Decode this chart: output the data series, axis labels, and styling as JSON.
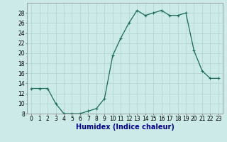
{
  "x": [
    0,
    1,
    2,
    3,
    4,
    5,
    6,
    7,
    8,
    9,
    10,
    11,
    12,
    13,
    14,
    15,
    16,
    17,
    18,
    19,
    20,
    21,
    22,
    23
  ],
  "y": [
    13,
    13,
    13,
    10,
    8,
    8,
    8,
    8.5,
    9,
    11,
    19.5,
    23,
    26,
    28.5,
    27.5,
    28,
    28.5,
    27.5,
    27.5,
    28,
    20.5,
    16.5,
    15,
    15
  ],
  "line_color": "#1a6b5a",
  "marker": "+",
  "marker_size": 3,
  "marker_linewidth": 0.8,
  "line_width": 0.9,
  "bg_color": "#cceae7",
  "grid_color": "#b0d4d0",
  "grid_linewidth": 0.5,
  "xlabel": "Humidex (Indice chaleur)",
  "xlabel_fontsize": 7,
  "tick_fontsize": 5.5,
  "ylim": [
    8,
    30
  ],
  "xlim": [
    -0.5,
    23.5
  ],
  "yticks": [
    8,
    10,
    12,
    14,
    16,
    18,
    20,
    22,
    24,
    26,
    28
  ],
  "xticks": [
    0,
    1,
    2,
    3,
    4,
    5,
    6,
    7,
    8,
    9,
    10,
    11,
    12,
    13,
    14,
    15,
    16,
    17,
    18,
    19,
    20,
    21,
    22,
    23
  ],
  "spine_color": "#888888",
  "xlabel_color": "#00008b",
  "xlabel_bold": true
}
